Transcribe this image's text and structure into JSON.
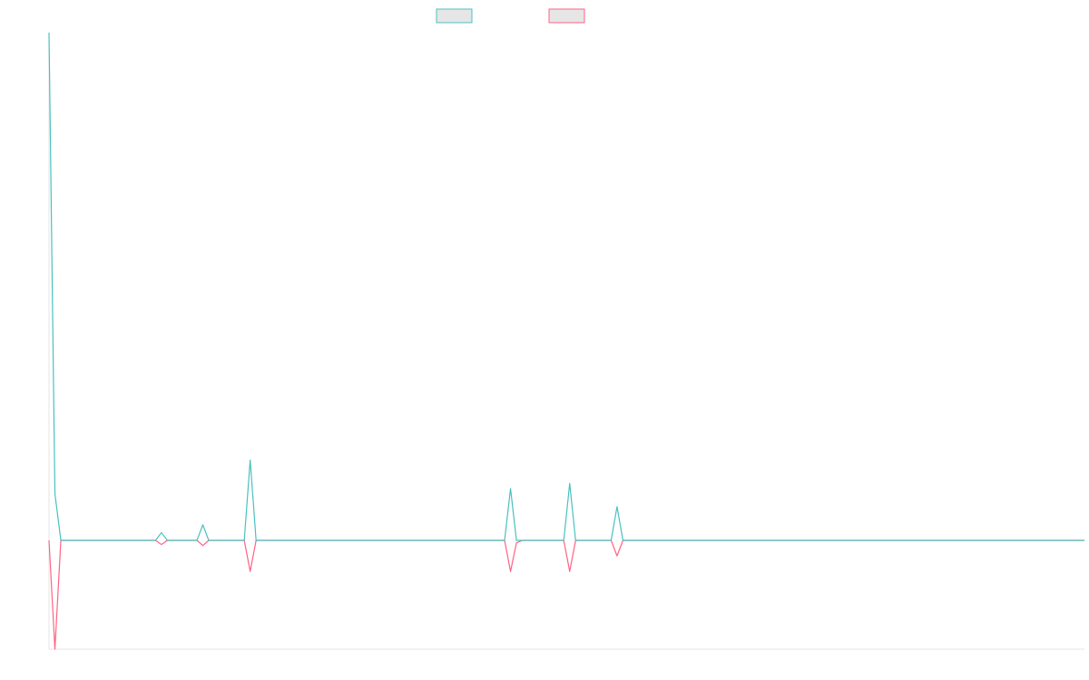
{
  "chart_data": {
    "type": "line",
    "title": "",
    "xlabel": "",
    "ylabel": "",
    "x": [
      0,
      1,
      2,
      3,
      4,
      5,
      6,
      7,
      8,
      9,
      10,
      11,
      12,
      13,
      14,
      15,
      16,
      17,
      18,
      19,
      20,
      21,
      22,
      23,
      24,
      25,
      26,
      27,
      28,
      29,
      30,
      31,
      32,
      33,
      34,
      35,
      36,
      37,
      38,
      39,
      40,
      41,
      42,
      43,
      44,
      45,
      46,
      47,
      48,
      49,
      50,
      51,
      52,
      53,
      54,
      55,
      56,
      57,
      58,
      59,
      60,
      61,
      62,
      63,
      64,
      65,
      66,
      67,
      68,
      69,
      70,
      71,
      72,
      73,
      74,
      75,
      76,
      77,
      78,
      79,
      80,
      81,
      82,
      83,
      84,
      85,
      86,
      87,
      88,
      89,
      90,
      91,
      92,
      93,
      94,
      95,
      96,
      97,
      98,
      99,
      100,
      101,
      102,
      103,
      104,
      105,
      106,
      107,
      108,
      109,
      110,
      111,
      112,
      113,
      114,
      115,
      116,
      117,
      118,
      119,
      120,
      121,
      122,
      123,
      124,
      125,
      126,
      127,
      128,
      129,
      130,
      131,
      132,
      133,
      134,
      135,
      136,
      137,
      138,
      139,
      140,
      141,
      142,
      143,
      144,
      145,
      146,
      147,
      148,
      149,
      150,
      151,
      152,
      153,
      154,
      155,
      156,
      157,
      158,
      159,
      160,
      161,
      162,
      163,
      164,
      165,
      166,
      167,
      168,
      169,
      170,
      171,
      172,
      173,
      174,
      175
    ],
    "xlim": [
      0,
      175
    ],
    "ylim": [
      -21,
      98
    ],
    "grid": false,
    "legend_position": "top-center",
    "series": [
      {
        "name": "",
        "color": "#4bc0c0",
        "fill": "#e6e6e6",
        "values": [
          98,
          9,
          0,
          0,
          0,
          0,
          0,
          0,
          0,
          0,
          0,
          0,
          0,
          0,
          0,
          0,
          0,
          0,
          0,
          1.5,
          0,
          0,
          0,
          0,
          0,
          0,
          3,
          0,
          0,
          0,
          0,
          0,
          0,
          0,
          15.5,
          0,
          0,
          0,
          0,
          0,
          0,
          0,
          0,
          0,
          0,
          0,
          0,
          0,
          0,
          0,
          0,
          0,
          0,
          0,
          0,
          0,
          0,
          0,
          0,
          0,
          0,
          0,
          0,
          0,
          0,
          0,
          0,
          0,
          0,
          0,
          0,
          0,
          0,
          0,
          0,
          0,
          0,
          0,
          10,
          0,
          0,
          0,
          0,
          0,
          0,
          0,
          0,
          0,
          11,
          0,
          0,
          0,
          0,
          0,
          0,
          0,
          6.5,
          0,
          0,
          0,
          0,
          0,
          0,
          0,
          0,
          0,
          0,
          0,
          0,
          0,
          0,
          0,
          0,
          0,
          0,
          0,
          0,
          0,
          0,
          0,
          0,
          0,
          0,
          0,
          0,
          0,
          0,
          0,
          0,
          0,
          0,
          0,
          0,
          0,
          0,
          0,
          0,
          0,
          0,
          0,
          0,
          0,
          0,
          0,
          0,
          0,
          0,
          0,
          0,
          0,
          0,
          0,
          0,
          0,
          0,
          0,
          0,
          0,
          0,
          0,
          0,
          0,
          0,
          0,
          0,
          0,
          0,
          0,
          0,
          0,
          0,
          0,
          0,
          0,
          0,
          0
        ]
      },
      {
        "name": "",
        "color": "#ff6384",
        "fill": "#e6e6e6",
        "values": [
          0,
          -21,
          0,
          0,
          0,
          0,
          0,
          0,
          0,
          0,
          0,
          0,
          0,
          0,
          0,
          0,
          0,
          0,
          0,
          -0.8,
          0,
          0,
          0,
          0,
          0,
          0,
          -1,
          0,
          0,
          0,
          0,
          0,
          0,
          0,
          -6,
          0,
          0,
          0,
          0,
          0,
          0,
          0,
          0,
          0,
          0,
          0,
          0,
          0,
          0,
          0,
          0,
          0,
          0,
          0,
          0,
          0,
          0,
          0,
          0,
          0,
          0,
          0,
          0,
          0,
          0,
          0,
          0,
          0,
          0,
          0,
          0,
          0,
          0,
          0,
          0,
          0,
          0,
          0,
          -6,
          -0.5,
          0,
          0,
          0,
          0,
          0,
          0,
          0,
          0,
          -6,
          0,
          0,
          0,
          0,
          0,
          0,
          0,
          -3,
          0,
          0,
          0,
          0,
          0,
          0,
          0,
          0,
          0,
          0,
          0,
          0,
          0,
          0,
          0,
          0,
          0,
          0,
          0,
          0,
          0,
          0,
          0,
          0,
          0,
          0,
          0,
          0,
          0,
          0,
          0,
          0,
          0,
          0,
          0,
          0,
          0,
          0,
          0,
          0,
          0,
          0,
          0,
          0,
          0,
          0,
          0,
          0,
          0,
          0,
          0,
          0,
          0,
          0,
          0,
          0,
          0,
          0,
          0,
          0,
          0,
          0,
          0,
          0,
          0,
          0,
          0,
          0,
          0,
          0,
          0,
          0,
          0,
          0,
          0,
          0,
          0,
          0,
          0
        ]
      }
    ]
  }
}
